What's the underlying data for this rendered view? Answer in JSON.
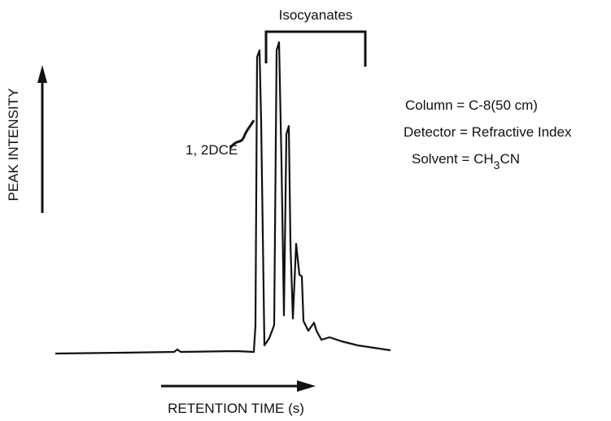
{
  "bracket_label": "Isocyanates",
  "peak_label": "1, 2DCE",
  "y_axis_label": "PEAK INTENSITY",
  "x_axis_label": "RETENTION TIME (s)",
  "conditions": {
    "column": "Column = C-8(50 cm)",
    "detector": "Detector = Refractive Index",
    "solvent": {
      "text": "Solvent = CH",
      "subscript": "3",
      "suffix": "CN"
    }
  }
}
